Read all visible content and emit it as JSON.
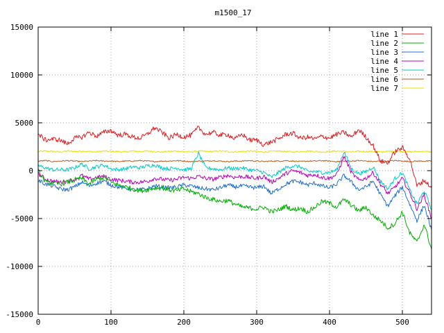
{
  "chart_data": {
    "type": "line",
    "title": "m1500_17",
    "xlabel": "",
    "ylabel": "",
    "xlim": [
      0,
      540
    ],
    "ylim": [
      -15000,
      15000
    ],
    "xticks": [
      0,
      100,
      200,
      300,
      400,
      500
    ],
    "yticks": [
      -15000,
      -10000,
      -5000,
      0,
      5000,
      10000,
      15000
    ],
    "grid": true,
    "legend_position": "top-right",
    "series": [
      {
        "name": "line 1",
        "color": "#e41a1c",
        "x": [
          0,
          10,
          20,
          30,
          40,
          50,
          60,
          70,
          80,
          90,
          100,
          110,
          120,
          130,
          140,
          150,
          160,
          170,
          180,
          190,
          200,
          210,
          220,
          230,
          240,
          250,
          260,
          270,
          280,
          290,
          300,
          310,
          320,
          330,
          340,
          350,
          360,
          370,
          380,
          390,
          400,
          410,
          420,
          430,
          440,
          450,
          460,
          470,
          480,
          490,
          500,
          510,
          520,
          530,
          540
        ],
        "y": [
          3800,
          3200,
          3300,
          3200,
          2800,
          3400,
          3500,
          4000,
          3600,
          4000,
          4200,
          3700,
          3800,
          3500,
          3400,
          3800,
          4500,
          4000,
          3400,
          3800,
          3500,
          3700,
          4500,
          3800,
          4000,
          3700,
          3800,
          3300,
          3800,
          3200,
          3200,
          2700,
          3000,
          3300,
          3800,
          3900,
          3400,
          3500,
          3300,
          3600,
          3400,
          3800,
          4000,
          3500,
          4300,
          3500,
          2600,
          1000,
          800,
          2000,
          2400,
          1300,
          -1600,
          -1000,
          -1800
        ],
        "noise": 250
      },
      {
        "name": "line 2",
        "color": "#00b000",
        "x": [
          0,
          10,
          20,
          30,
          40,
          50,
          60,
          70,
          80,
          90,
          100,
          110,
          120,
          130,
          140,
          150,
          160,
          170,
          180,
          190,
          200,
          210,
          220,
          230,
          240,
          250,
          260,
          270,
          280,
          290,
          300,
          310,
          320,
          330,
          340,
          350,
          360,
          370,
          380,
          390,
          400,
          410,
          420,
          430,
          440,
          450,
          460,
          470,
          480,
          490,
          500,
          510,
          520,
          530,
          540
        ],
        "y": [
          0,
          -1200,
          -1300,
          -1400,
          -1200,
          -1000,
          -800,
          -1400,
          -900,
          -700,
          -1200,
          -1500,
          -1700,
          -1900,
          -2100,
          -2000,
          -1800,
          -1800,
          -2000,
          -2100,
          -1900,
          -2200,
          -2400,
          -2800,
          -3000,
          -3200,
          -3100,
          -3500,
          -3800,
          -3900,
          -4000,
          -3800,
          -4300,
          -4100,
          -3700,
          -4100,
          -3900,
          -4300,
          -3800,
          -3200,
          -3400,
          -3800,
          -3000,
          -3600,
          -4200,
          -3800,
          -4700,
          -5200,
          -6000,
          -5500,
          -4300,
          -6500,
          -7500,
          -5600,
          -8200
        ],
        "noise": 250
      },
      {
        "name": "line 3",
        "color": "#1f6fd0",
        "x": [
          0,
          10,
          20,
          30,
          40,
          50,
          60,
          70,
          80,
          90,
          100,
          110,
          120,
          130,
          140,
          150,
          160,
          170,
          180,
          190,
          200,
          210,
          220,
          230,
          240,
          250,
          260,
          270,
          280,
          290,
          300,
          310,
          320,
          330,
          340,
          350,
          360,
          370,
          380,
          390,
          400,
          410,
          420,
          430,
          440,
          450,
          460,
          470,
          480,
          490,
          500,
          510,
          520,
          530,
          540
        ],
        "y": [
          -1000,
          -1400,
          -1600,
          -1900,
          -2000,
          -1700,
          -1200,
          -1600,
          -1300,
          -1100,
          -1500,
          -1700,
          -1800,
          -2000,
          -2000,
          -1900,
          -1600,
          -1700,
          -1800,
          -1700,
          -1500,
          -1600,
          -1800,
          -1900,
          -2000,
          -1800,
          -1500,
          -1700,
          -1600,
          -1700,
          -1800,
          -1600,
          -2400,
          -1900,
          -1400,
          -1100,
          -1200,
          -1500,
          -1300,
          -1600,
          -1800,
          -1400,
          -500,
          -1200,
          -2000,
          -1700,
          -1100,
          -2500,
          -3700,
          -2600,
          -1700,
          -3500,
          -5200,
          -3600,
          -6200
        ],
        "noise": 220
      },
      {
        "name": "line 4",
        "color": "#c000c0",
        "x": [
          0,
          10,
          20,
          30,
          40,
          50,
          60,
          70,
          80,
          90,
          100,
          110,
          120,
          130,
          140,
          150,
          160,
          170,
          180,
          190,
          200,
          210,
          220,
          230,
          240,
          250,
          260,
          270,
          280,
          290,
          300,
          310,
          320,
          330,
          340,
          350,
          360,
          370,
          380,
          390,
          400,
          410,
          420,
          430,
          440,
          450,
          460,
          470,
          480,
          490,
          500,
          510,
          520,
          530,
          540
        ],
        "y": [
          -300,
          -900,
          -1100,
          -1200,
          -1100,
          -900,
          -500,
          -900,
          -700,
          -600,
          -900,
          -1000,
          -1100,
          -1200,
          -1200,
          -1100,
          -800,
          -900,
          -1000,
          -900,
          -700,
          -800,
          -600,
          -800,
          -900,
          -700,
          -500,
          -700,
          -600,
          -700,
          -800,
          -600,
          -1200,
          -800,
          -300,
          0,
          -200,
          -500,
          -400,
          -700,
          -800,
          -400,
          1500,
          -200,
          -1000,
          -800,
          -200,
          -1400,
          -2400,
          -1700,
          -800,
          -2300,
          -4000,
          -2500,
          -5000
        ],
        "noise": 220
      },
      {
        "name": "line 5",
        "color": "#00cccc",
        "x": [
          0,
          10,
          20,
          30,
          40,
          50,
          60,
          70,
          80,
          90,
          100,
          110,
          120,
          130,
          140,
          150,
          160,
          170,
          180,
          190,
          200,
          210,
          220,
          230,
          240,
          250,
          260,
          270,
          280,
          290,
          300,
          310,
          320,
          330,
          340,
          350,
          360,
          370,
          380,
          390,
          400,
          410,
          420,
          430,
          440,
          450,
          460,
          470,
          480,
          490,
          500,
          510,
          520,
          530,
          540
        ],
        "y": [
          500,
          300,
          100,
          100,
          100,
          300,
          700,
          200,
          400,
          600,
          200,
          100,
          200,
          400,
          300,
          500,
          600,
          300,
          200,
          300,
          100,
          200,
          1800,
          300,
          200,
          100,
          300,
          200,
          300,
          100,
          0,
          -200,
          -700,
          -200,
          300,
          500,
          400,
          -100,
          -100,
          -200,
          -200,
          100,
          2000,
          200,
          -300,
          -100,
          400,
          -1100,
          -1900,
          -800,
          -200,
          -2000,
          -3500,
          -2100,
          -4000
        ],
        "noise": 200
      },
      {
        "name": "line 6",
        "color": "#b35a1f",
        "x": [
          0,
          10,
          20,
          30,
          40,
          50,
          60,
          70,
          80,
          90,
          100,
          110,
          120,
          130,
          140,
          150,
          160,
          170,
          180,
          190,
          200,
          210,
          220,
          230,
          240,
          250,
          260,
          270,
          280,
          290,
          300,
          310,
          320,
          330,
          340,
          350,
          360,
          370,
          380,
          390,
          400,
          410,
          420,
          430,
          440,
          450,
          460,
          470,
          480,
          490,
          500,
          510,
          520,
          530,
          540
        ],
        "y": [
          1000,
          1050,
          950,
          1000,
          1050,
          1000,
          950,
          1000,
          1050,
          1000,
          1000,
          950,
          1000,
          1000,
          1050,
          1000,
          950,
          1000,
          1000,
          1050,
          1000,
          950,
          1000,
          1000,
          1050,
          1000,
          950,
          1000,
          1000,
          1050,
          1000,
          950,
          1000,
          1000,
          1050,
          1000,
          950,
          1000,
          1000,
          1050,
          1000,
          950,
          1000,
          1000,
          1050,
          1000,
          950,
          1000,
          1000,
          1050,
          1000,
          950,
          1000,
          1000,
          1000
        ],
        "noise": 60
      },
      {
        "name": "line 7",
        "color": "#e8e000",
        "x": [
          0,
          10,
          20,
          30,
          40,
          50,
          60,
          70,
          80,
          90,
          100,
          110,
          120,
          130,
          140,
          150,
          160,
          170,
          180,
          190,
          200,
          210,
          220,
          230,
          240,
          250,
          260,
          270,
          280,
          290,
          300,
          310,
          320,
          330,
          340,
          350,
          360,
          370,
          380,
          390,
          400,
          410,
          420,
          430,
          440,
          450,
          460,
          470,
          480,
          490,
          500,
          510,
          520,
          530,
          540
        ],
        "y": [
          2000,
          2050,
          2000,
          1950,
          2050,
          2000,
          2050,
          2000,
          1950,
          2050,
          2000,
          2000,
          1950,
          2050,
          2000,
          2050,
          2000,
          1950,
          2000,
          2050,
          2000,
          1950,
          2050,
          2000,
          2000,
          2050,
          2000,
          1950,
          2000,
          2050,
          2000,
          1950,
          2000,
          2050,
          2000,
          1950,
          2000,
          2050,
          2000,
          1950,
          2000,
          2050,
          2000,
          1950,
          2000,
          2000,
          2000,
          1950,
          2000,
          2050,
          2000,
          1950,
          2000,
          2000,
          1950
        ],
        "noise": 80
      }
    ]
  }
}
